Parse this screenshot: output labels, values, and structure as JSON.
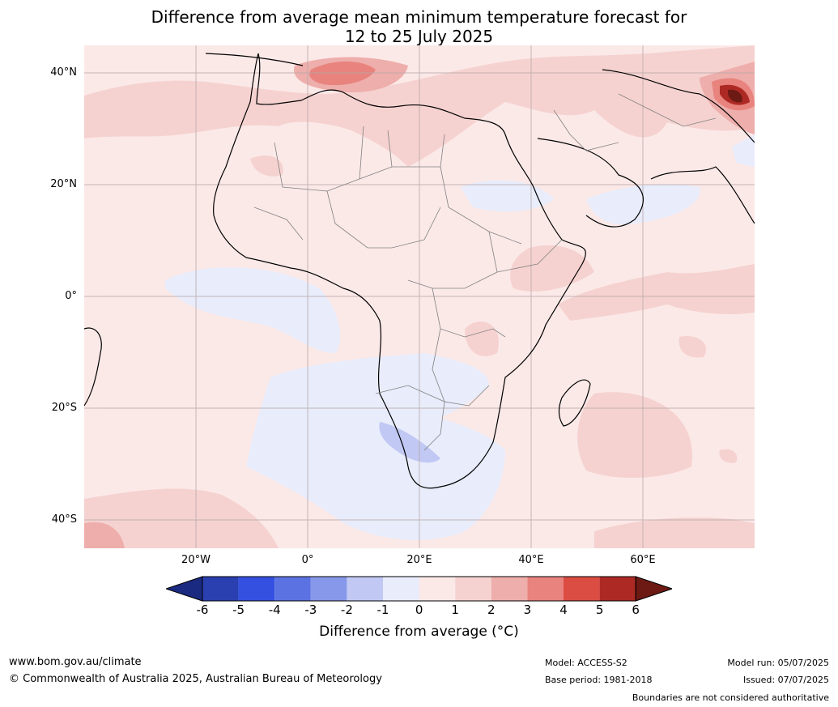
{
  "title": {
    "line1": "Difference from average mean minimum temperature forecast for",
    "line2": "12 to 25 July 2025"
  },
  "axes": {
    "lat_labels": [
      "40°N",
      "20°N",
      "0°",
      "20°S",
      "40°S"
    ],
    "lon_labels": [
      "20°W",
      "0°",
      "20°E",
      "40°E",
      "60°E"
    ]
  },
  "colorbar": {
    "ticks": [
      "-6",
      "-5",
      "-4",
      "-3",
      "-2",
      "-1",
      "0",
      "1",
      "2",
      "3",
      "4",
      "5",
      "6"
    ],
    "colors": [
      "#1a2a80",
      "#2a3fb0",
      "#3350e0",
      "#5b72e2",
      "#8797ea",
      "#c0c8f3",
      "#e8ecfb",
      "#fbe9e8",
      "#f5d2d0",
      "#eeaeab",
      "#e8837e",
      "#db4d43",
      "#ad2a24",
      "#6e1a14"
    ],
    "label": "Difference from average (°C)"
  },
  "footer": {
    "website": "www.bom.gov.au/climate",
    "copyright": "© Commonwealth of Australia 2025, Australian Bureau of Meteorology",
    "model": "Model: ACCESS-S2",
    "base_period": "Base period: 1981-2018",
    "model_run": "Model run: 05/07/2025",
    "issued": "Issued: 07/07/2025",
    "disclaimer": "Boundaries are not considered authoritative"
  }
}
